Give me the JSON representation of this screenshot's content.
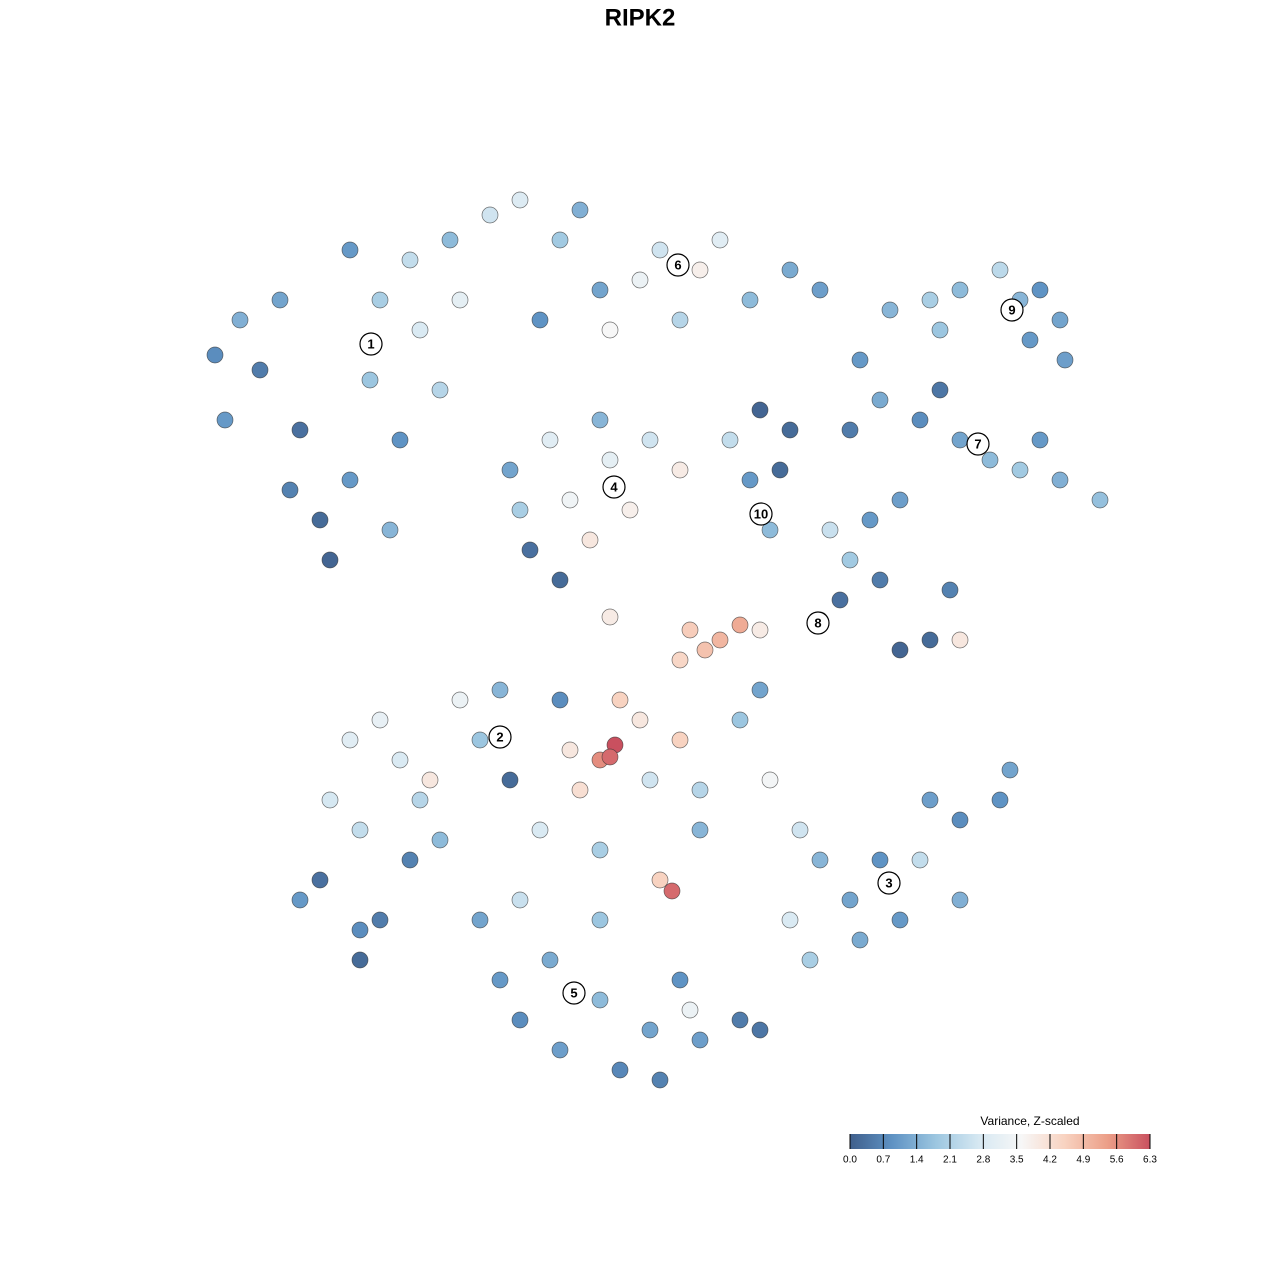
{
  "chart_data": {
    "type": "scatter",
    "title": "RIPK2",
    "xlim": [
      -44,
      49
    ],
    "ylim": [
      -45,
      46
    ],
    "x": [
      -42.5,
      -41.5,
      -40,
      -38,
      -36,
      -34,
      -32,
      -31,
      -29,
      -29,
      -27,
      -26,
      -25,
      -24,
      -23,
      -22,
      -20,
      -19,
      -18,
      -35,
      -15,
      -12,
      -8,
      -4,
      0,
      2,
      6,
      8,
      11,
      15,
      18,
      4,
      -10,
      -3,
      -6,
      -13,
      -11,
      -9,
      -7,
      -5,
      -3,
      -1,
      1,
      4,
      -4,
      -8,
      -12,
      12,
      15,
      11,
      13,
      14,
      9,
      22,
      24,
      28,
      32,
      35,
      38,
      42,
      46,
      40,
      26,
      21,
      30,
      25,
      29,
      32,
      36,
      38,
      42,
      42.5,
      40,
      30,
      39,
      19,
      21,
      20,
      24,
      26,
      29,
      32,
      31,
      18,
      23,
      5,
      8,
      10,
      6.5,
      4,
      12,
      -3,
      -31,
      -29,
      -26,
      -24,
      -22,
      -20,
      -18,
      -16,
      -28,
      -23,
      -13,
      -14,
      -21,
      -34,
      -32,
      -28,
      -26,
      -28,
      16,
      18,
      21,
      24,
      26,
      29,
      32,
      36,
      37,
      28,
      15,
      17,
      22,
      32,
      13,
      -7,
      -4,
      -2.5,
      -3,
      -6,
      -2,
      0,
      4,
      1,
      6,
      10,
      -10,
      -4,
      2,
      3.2,
      6,
      12,
      -8,
      -16,
      -14,
      -12,
      -9,
      -8,
      -4,
      -2,
      1,
      4,
      6,
      10,
      -4,
      -12,
      2,
      5,
      12
    ],
    "y": [
      28.5,
      22,
      32,
      27,
      34,
      21,
      12,
      8,
      39,
      16,
      26,
      34,
      11,
      20,
      38,
      31,
      25,
      40,
      34,
      15,
      42.5,
      44,
      40,
      35,
      36,
      39,
      37,
      40,
      34,
      37,
      35,
      32,
      32,
      31,
      43,
      17,
      9,
      20,
      14,
      10,
      18,
      13,
      20,
      17,
      22,
      6,
      13,
      23,
      21,
      16,
      11,
      17,
      20,
      28,
      24,
      22,
      20,
      18,
      17,
      16,
      14,
      20,
      14,
      21,
      25,
      33,
      34,
      35,
      37,
      34,
      32,
      28,
      35,
      31,
      30,
      11,
      8,
      4,
      6,
      -1,
      0,
      0,
      5,
      2,
      12,
      1,
      0,
      1.5,
      -1,
      -2,
      1,
      2.3,
      -16,
      -10,
      -8,
      -12,
      -16,
      -20,
      -6,
      -10,
      -19,
      -22,
      -14,
      -5,
      -14,
      -26,
      -24,
      -29,
      -28,
      -32,
      -19,
      -22,
      -26,
      -22,
      -28,
      -16,
      -18,
      -16,
      -13,
      -22,
      -28,
      -32,
      -30,
      -26,
      -14,
      -11,
      -12,
      -10.5,
      -11.7,
      -15,
      -6,
      -8,
      -10,
      -14,
      -15,
      -8,
      -19,
      -21,
      -24,
      -25.1,
      -19,
      -5,
      -6,
      -28,
      -34,
      -38,
      -32,
      -41,
      -36,
      -43,
      -39,
      -34,
      -40,
      -38,
      -28,
      -26,
      -44,
      -37,
      -39
    ],
    "values": [
      0.8,
      1.0,
      1.4,
      0.5,
      1.2,
      0.3,
      0.2,
      0.1,
      1.0,
      1.0,
      1.8,
      2.0,
      1.5,
      0.9,
      2.4,
      2.8,
      2.2,
      1.6,
      3.1,
      0.6,
      2.6,
      2.9,
      1.9,
      1.2,
      3.3,
      2.6,
      3.8,
      3.0,
      1.6,
      1.3,
      1.1,
      2.2,
      0.9,
      3.6,
      1.4,
      1.2,
      0.3,
      3.0,
      3.4,
      4.0,
      3.1,
      3.8,
      2.6,
      3.9,
      1.5,
      0.2,
      2.0,
      0.1,
      0.2,
      1.0,
      1.6,
      0.2,
      2.4,
      1.0,
      1.3,
      0.8,
      1.2,
      1.6,
      1.9,
      1.4,
      1.7,
      1.0,
      1.1,
      0.5,
      0.4,
      1.5,
      2.0,
      1.6,
      2.3,
      1.5,
      1.2,
      1.1,
      0.9,
      1.8,
      1.0,
      2.5,
      1.9,
      0.3,
      0.5,
      0.1,
      0.2,
      4.0,
      0.6,
      3.0,
      1.0,
      4.6,
      5.0,
      5.2,
      4.8,
      4.4,
      3.9,
      3.9,
      2.7,
      3.0,
      3.2,
      2.8,
      2.2,
      1.6,
      3.3,
      1.8,
      2.4,
      0.6,
      0.2,
      1.5,
      4.0,
      1.0,
      0.3,
      0.8,
      0.5,
      0.2,
      2.6,
      1.5,
      1.2,
      0.9,
      1.0,
      1.1,
      0.8,
      0.9,
      1.2,
      2.4,
      2.8,
      2.0,
      1.3,
      1.4,
      3.5,
      4.0,
      5.6,
      6.3,
      6.0,
      4.2,
      4.5,
      4.0,
      4.5,
      2.6,
      2.2,
      1.8,
      2.8,
      2.0,
      4.5,
      6.0,
      1.5,
      1.2,
      0.8,
      1.2,
      1.0,
      0.8,
      1.3,
      1.1,
      1.6,
      0.7,
      1.2,
      0.9,
      1.1,
      0.5,
      1.8,
      2.5,
      0.6,
      3.3,
      0.4
    ],
    "annotations": [
      {
        "text": "1",
        "x": -26.9,
        "y": 29.6
      },
      {
        "text": "6",
        "x": 3.8,
        "y": 37.5
      },
      {
        "text": "9",
        "x": 37.2,
        "y": 33
      },
      {
        "text": "7",
        "x": 33.8,
        "y": 19.6
      },
      {
        "text": "4",
        "x": -2.6,
        "y": 15.3
      },
      {
        "text": "10",
        "x": 12.1,
        "y": 12.6
      },
      {
        "text": "8",
        "x": 17.8,
        "y": 1.7
      },
      {
        "text": "2",
        "x": -14,
        "y": -9.7
      },
      {
        "text": "3",
        "x": 24.9,
        "y": -24.3
      },
      {
        "text": "5",
        "x": -6.6,
        "y": -35.3
      }
    ],
    "colorbar": {
      "title": "Variance, Z-scaled",
      "lim": [
        0,
        6.3
      ],
      "ticks": [
        {
          "value": 0,
          "label": "0.0"
        },
        0.7,
        1.4,
        2.1,
        2.8,
        3.5,
        4.2,
        4.9,
        5.6,
        6.3
      ],
      "colors": [
        "#3f5f8c",
        "#5f93c4",
        "#9cc6e0",
        "#d6e8f2",
        "#f7f7f7",
        "#f8d3c1",
        "#ec9f88",
        "#c9505f"
      ]
    }
  }
}
